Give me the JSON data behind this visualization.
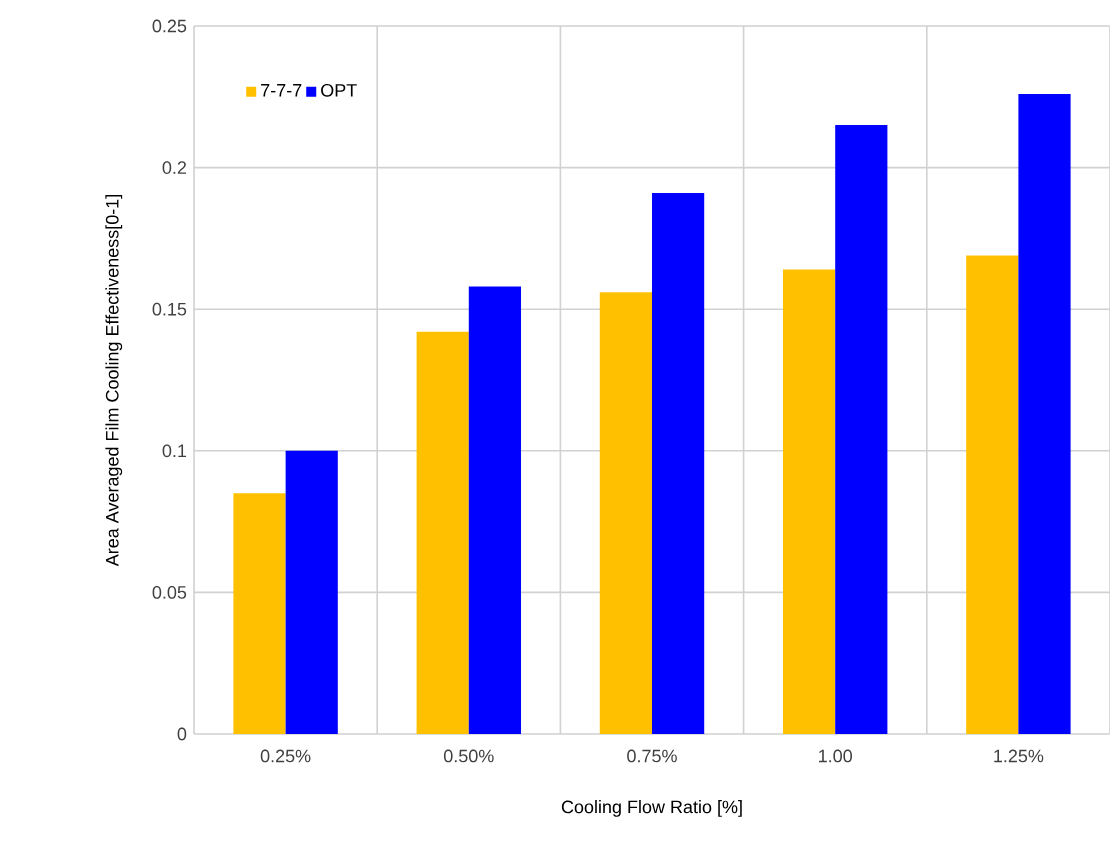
{
  "chart_data": {
    "type": "bar",
    "xlabel": "Cooling Flow Ratio [%]",
    "ylabel": "Area Averaged Film Cooling Effectiveness[0-1]",
    "categories": [
      "0.25%",
      "0.50%",
      "0.75%",
      "1.00",
      "1.25%"
    ],
    "series": [
      {
        "name": "7-7-7",
        "color": "#ffc000",
        "values": [
          0.085,
          0.142,
          0.156,
          0.164,
          0.169
        ]
      },
      {
        "name": "OPT",
        "color": "#0000ff",
        "values": [
          0.1,
          0.158,
          0.191,
          0.215,
          0.226
        ]
      }
    ],
    "ylim": [
      0,
      0.25
    ],
    "yticks": [
      0,
      0.05,
      0.1,
      0.15,
      0.2,
      0.25
    ],
    "grid": true,
    "legend": "top left"
  }
}
